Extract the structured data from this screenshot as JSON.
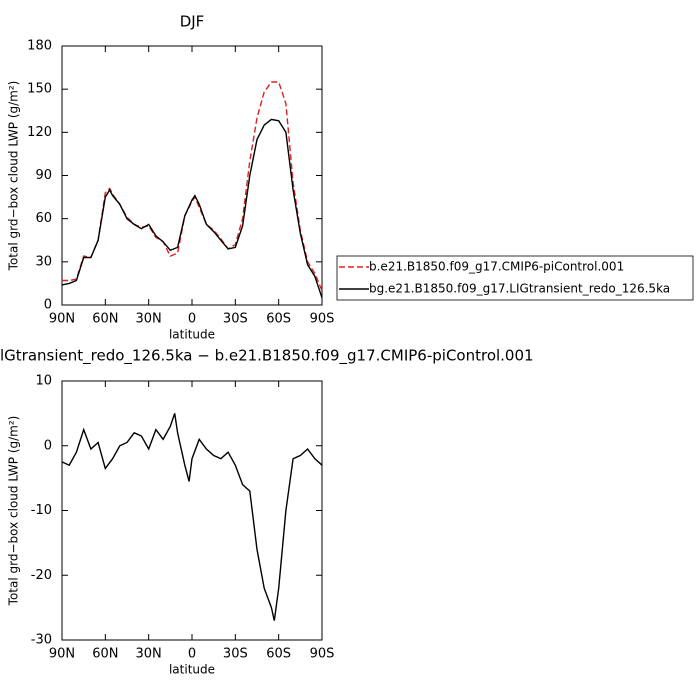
{
  "chart_data": [
    {
      "type": "line",
      "title": "DJF",
      "xlabel": "latitude",
      "ylabel": "Total grd−box cloud LWP (g/m²)",
      "x": [
        90,
        85,
        80,
        75,
        70,
        65,
        60,
        57,
        55,
        50,
        45,
        40,
        35,
        30,
        25,
        20,
        15,
        10,
        5,
        0,
        -2,
        -5,
        -10,
        -15,
        -20,
        -25,
        -30,
        -35,
        -40,
        -45,
        -50,
        -55,
        -60,
        -65,
        -70,
        -75,
        -80,
        -85,
        -90
      ],
      "series": [
        {
          "name": "b.e21.B1850.f09_g17.CMIP6-piControl.001",
          "color": "#e02020",
          "dash": true,
          "values": [
            17,
            17,
            18,
            34,
            33,
            45,
            78,
            81,
            77,
            70,
            61,
            56,
            54,
            55,
            47,
            44,
            34,
            36,
            62,
            72,
            75,
            68,
            56,
            52,
            46,
            39,
            42,
            60,
            100,
            130,
            148,
            155,
            155,
            140,
            85,
            52,
            30,
            22,
            10
          ]
        },
        {
          "name": "bg.e21.B1850.f09_g17.LIGtransient_redo_126.5ka",
          "color": "#000000",
          "dash": false,
          "values": [
            14,
            15,
            17,
            33,
            33,
            45,
            75,
            80,
            76,
            70,
            60,
            56,
            53,
            56,
            48,
            44,
            38,
            40,
            62,
            73,
            76,
            70,
            56,
            51,
            45,
            39,
            40,
            55,
            90,
            115,
            125,
            129,
            128,
            120,
            80,
            50,
            28,
            20,
            5
          ]
        }
      ],
      "xlim": [
        90,
        -90
      ],
      "xticks": [
        {
          "value": 90,
          "label": "90N"
        },
        {
          "value": 60,
          "label": "60N"
        },
        {
          "value": 30,
          "label": "30N"
        },
        0,
        {
          "value": -30,
          "label": "30S"
        },
        {
          "value": -60,
          "label": "60S"
        },
        {
          "value": -90,
          "label": "90S"
        }
      ],
      "ylim": [
        0,
        180
      ],
      "yticks": [
        0,
        30,
        60,
        90,
        120,
        150,
        180
      ],
      "legend": "right"
    },
    {
      "type": "line",
      "title": "lGtransient_redo_126.5ka − b.e21.B1850.f09_g17.CMIP6-piControl.001",
      "xlabel": "latitude",
      "ylabel": "Total grd−box cloud LWP (g/m²)",
      "x": [
        90,
        85,
        80,
        75,
        70,
        65,
        60,
        55,
        50,
        45,
        40,
        35,
        30,
        25,
        20,
        15,
        12,
        10,
        5,
        2,
        0,
        -5,
        -10,
        -15,
        -20,
        -25,
        -30,
        -35,
        -40,
        -45,
        -50,
        -55,
        -57,
        -60,
        -65,
        -70,
        -75,
        -80,
        -85,
        -90
      ],
      "series": [
        {
          "color": "#000000",
          "values": [
            -2.5,
            -3,
            -1,
            2.5,
            -0.5,
            0.5,
            -3.5,
            -2,
            0,
            0.5,
            2,
            1.5,
            -0.5,
            2.5,
            1,
            3,
            5,
            2,
            -3,
            -5.5,
            -2,
            1,
            -0.5,
            -1.5,
            -2,
            -1,
            -3,
            -6,
            -7,
            -16,
            -22,
            -25,
            -27,
            -22,
            -10,
            -2,
            -1.5,
            -0.5,
            -2,
            -3
          ]
        }
      ],
      "xlim": [
        90,
        -90
      ],
      "xticks": [
        {
          "value": 90,
          "label": "90N"
        },
        {
          "value": 60,
          "label": "60N"
        },
        {
          "value": 30,
          "label": "30N"
        },
        0,
        {
          "value": -30,
          "label": "30S"
        },
        {
          "value": -60,
          "label": "60S"
        },
        {
          "value": -90,
          "label": "90S"
        }
      ],
      "ylim": [
        -30,
        10
      ],
      "yticks": [
        -30,
        -20,
        -10,
        0,
        10
      ]
    }
  ]
}
